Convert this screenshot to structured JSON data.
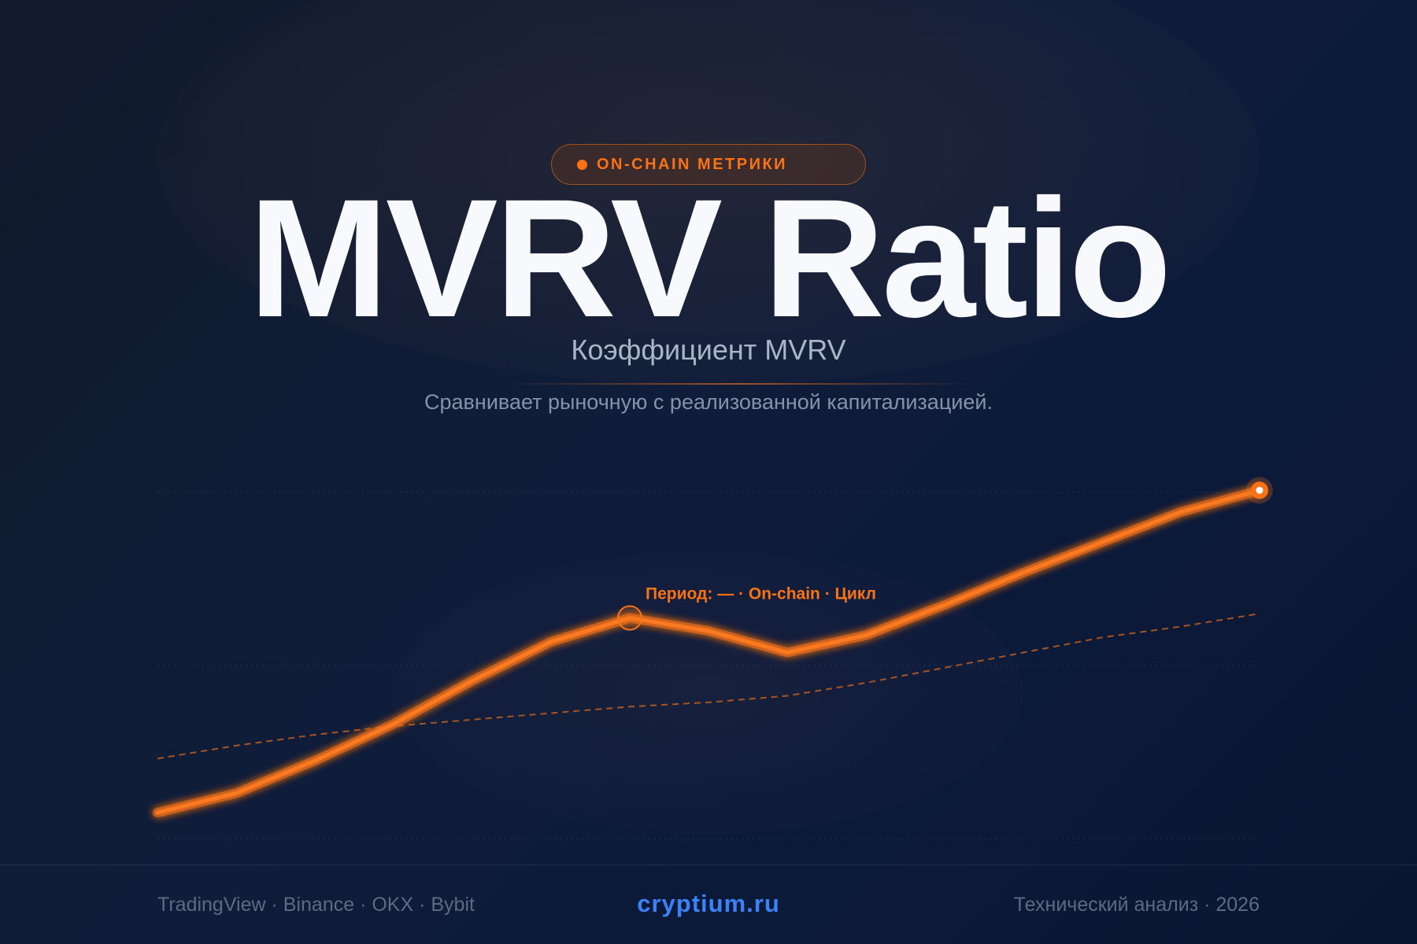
{
  "badge": {
    "label": "ON-CHAIN МЕТРИКИ"
  },
  "header": {
    "title": "MVRV Ratio",
    "subtitle": "Коэффициент MVRV",
    "description": "Сравнивает рыночную с реализованной капитализацией."
  },
  "footer": {
    "sources": "TradingView · Binance · OKX · Bybit",
    "site": "cryptium.ru",
    "note": "Технический анализ · 2026"
  },
  "colors": {
    "accent": "#f97316",
    "link": "#3b82f6",
    "background": "#0f1d3a"
  },
  "chart_data": {
    "type": "line",
    "x": [
      0,
      1,
      2,
      3,
      4,
      5,
      6,
      7,
      8,
      9,
      10,
      11,
      12,
      13,
      14,
      15
    ],
    "series": [
      {
        "values": [
          0.12,
          0.21,
          0.36,
          0.53,
          0.73,
          0.91,
          1.02,
          0.96,
          0.86,
          0.94,
          1.08,
          1.23,
          1.37,
          1.51,
          1.61,
          1.61
        ]
      },
      {
        "values": [
          0.37,
          0.43,
          0.48,
          0.52,
          0.55,
          0.58,
          0.61,
          0.63,
          0.66,
          0.72,
          0.79,
          0.86,
          0.93,
          0.98,
          1.04,
          1.04
        ]
      }
    ],
    "x_plot": [
      0,
      1,
      2,
      3,
      4,
      5,
      6,
      7,
      8,
      9,
      10,
      11,
      12,
      13,
      14
    ],
    "ylim": [
      0,
      1.6
    ],
    "grid": true,
    "annotation": {
      "label": "Период: — · On-chain · Цикл",
      "index": 6
    },
    "highlight_last_point": true
  }
}
